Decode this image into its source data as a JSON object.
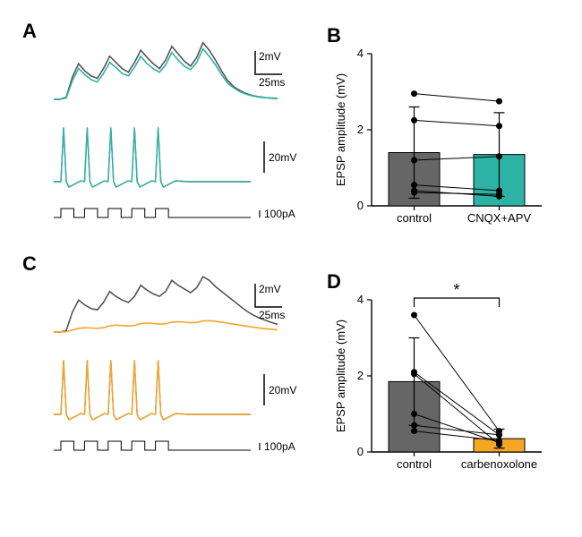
{
  "figure": {
    "background_color": "#ffffff",
    "dark_color": "#555555",
    "teal": "#2db3a6",
    "orange": "#f5a623",
    "black": "#000000",
    "panel_label_fontsize": 22,
    "panel_label_fontweight": "bold",
    "axis_label_fontsize": 13
  },
  "panels": {
    "A": {
      "label": "A",
      "scalebar": {
        "v_label": "2mV",
        "h_label": "25ms"
      },
      "spike_scale": "20mV",
      "stim_scale": "100pA",
      "epsp": {
        "ylim": [
          -0.3,
          4.8
        ],
        "control_color": "#555555",
        "treat_color": "#2db3a6",
        "line_width": 1.6,
        "control_y": [
          0,
          0,
          0.15,
          1.8,
          2.9,
          2.3,
          1.9,
          1.7,
          2.5,
          3.5,
          3.0,
          2.5,
          2.2,
          3.0,
          4.0,
          3.4,
          2.9,
          2.5,
          3.2,
          4.3,
          3.7,
          3.1,
          2.7,
          3.4,
          4.6,
          4.0,
          3.2,
          2.3,
          1.5,
          1.0,
          0.7,
          0.45,
          0.3,
          0.2,
          0.13,
          0.09,
          0.06
        ],
        "treat_y": [
          0,
          0,
          0.1,
          1.5,
          2.5,
          2.0,
          1.6,
          1.4,
          2.1,
          3.0,
          2.6,
          2.1,
          1.9,
          2.6,
          3.5,
          2.9,
          2.5,
          2.2,
          2.8,
          3.8,
          3.2,
          2.7,
          2.4,
          3.0,
          4.1,
          3.5,
          2.8,
          2.0,
          1.3,
          0.9,
          0.6,
          0.4,
          0.27,
          0.18,
          0.12,
          0.08,
          0.05
        ]
      },
      "spikes": {
        "ylim": [
          -3,
          25
        ],
        "line_width": 1.4,
        "pulses": [
          0,
          1,
          2,
          3,
          4
        ],
        "pulse_period": 5,
        "baseline": 0,
        "peak": 22,
        "ahp": -2.5
      },
      "stim": {
        "line_width": 1.0,
        "pulse_count": 5,
        "high": 1,
        "low": 0
      }
    },
    "B": {
      "label": "B",
      "type": "bar",
      "ylabel": "EPSP amplitude (mV)",
      "categories": [
        "control",
        "CNQX+APV"
      ],
      "ylim": [
        0,
        4
      ],
      "yticks": [
        0,
        2,
        4
      ],
      "bar_width": 0.6,
      "colors": [
        "#666666",
        "#2db3a6"
      ],
      "border_color": "#000000",
      "means": [
        1.4,
        1.35
      ],
      "err": [
        1.2,
        1.1
      ],
      "pairs": [
        [
          2.95,
          2.75
        ],
        [
          2.25,
          2.1
        ],
        [
          1.2,
          1.3
        ],
        [
          0.55,
          0.4
        ],
        [
          0.35,
          0.3
        ],
        [
          0.4,
          0.25
        ]
      ],
      "marker_radius": 3.5,
      "line_color": "#000000",
      "axis_color": "#000000",
      "tick_fontsize": 13,
      "cap_width": 6,
      "err_lw": 1.2
    },
    "C": {
      "label": "C",
      "scalebar": {
        "v_label": "2mV",
        "h_label": "25ms"
      },
      "spike_scale": "20mV",
      "stim_scale": "100pA",
      "epsp": {
        "ylim": [
          -0.3,
          4.8
        ],
        "control_color": "#555555",
        "treat_color": "#f5a623",
        "line_width": 1.6,
        "control_y": [
          0,
          0,
          0.1,
          1.6,
          2.6,
          2.2,
          1.9,
          1.8,
          2.4,
          3.3,
          2.9,
          2.6,
          2.4,
          2.9,
          3.8,
          3.4,
          3.1,
          2.9,
          3.3,
          4.2,
          3.8,
          3.5,
          3.2,
          3.6,
          4.5,
          4.2,
          3.7,
          3.3,
          2.9,
          2.5,
          2.1,
          1.7,
          1.4,
          1.15,
          0.95,
          0.78,
          0.62
        ],
        "treat_y": [
          0,
          0,
          0.02,
          0.15,
          0.3,
          0.34,
          0.32,
          0.3,
          0.34,
          0.5,
          0.55,
          0.52,
          0.49,
          0.52,
          0.68,
          0.72,
          0.68,
          0.64,
          0.66,
          0.8,
          0.83,
          0.79,
          0.75,
          0.77,
          0.9,
          0.92,
          0.87,
          0.8,
          0.72,
          0.63,
          0.55,
          0.47,
          0.4,
          0.33,
          0.27,
          0.22,
          0.18
        ]
      },
      "spikes": {
        "ylim": [
          -3,
          25
        ],
        "line_width": 1.4,
        "pulses": [
          0,
          1,
          2,
          3,
          4
        ],
        "baseline": 0,
        "peak": 22,
        "ahp": -2.5
      },
      "stim": {
        "line_width": 1.0,
        "pulse_count": 5
      }
    },
    "D": {
      "label": "D",
      "type": "bar",
      "ylabel": "EPSP amplitude (mV)",
      "categories": [
        "control",
        "carbenoxolone"
      ],
      "ylim": [
        0,
        4
      ],
      "yticks": [
        0,
        2,
        4
      ],
      "bar_width": 0.6,
      "colors": [
        "#666666",
        "#f5a623"
      ],
      "border_color": "#000000",
      "means": [
        1.85,
        0.35
      ],
      "err": [
        1.15,
        0.25
      ],
      "pairs": [
        [
          3.6,
          0.55
        ],
        [
          2.1,
          0.45
        ],
        [
          2.05,
          0.2
        ],
        [
          1.0,
          0.25
        ],
        [
          0.55,
          0.3
        ],
        [
          0.7,
          0.45
        ]
      ],
      "marker_radius": 3.5,
      "line_color": "#000000",
      "axis_color": "#000000",
      "tick_fontsize": 13,
      "cap_width": 6,
      "err_lw": 1.2,
      "sig_label": "*",
      "sig_fontsize": 18
    }
  }
}
